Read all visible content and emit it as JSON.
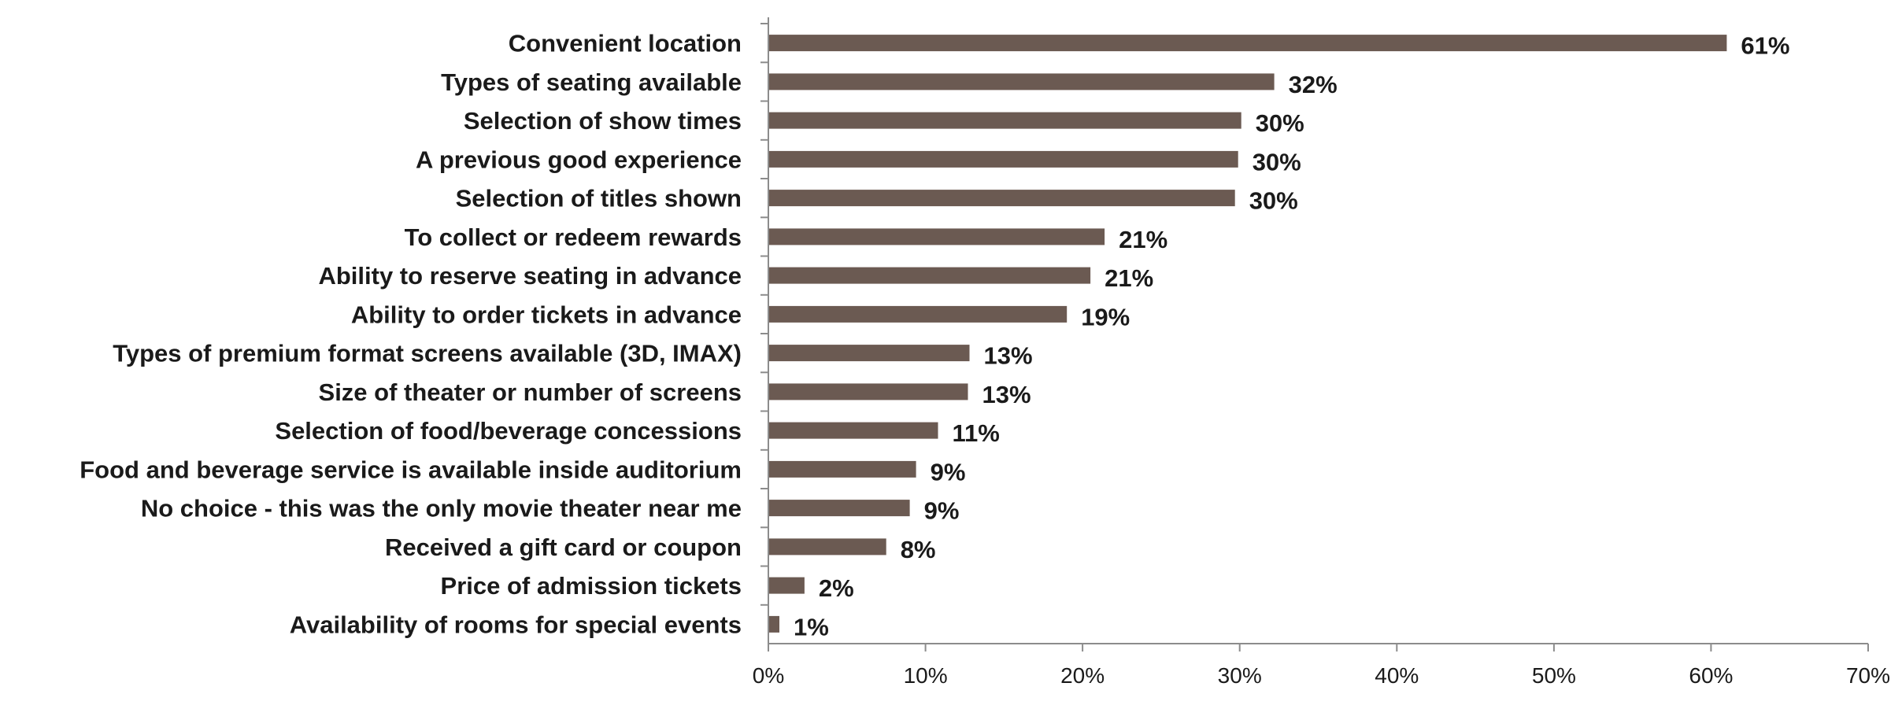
{
  "chart_data": {
    "type": "bar",
    "orientation": "horizontal",
    "title": "",
    "xlabel": "",
    "ylabel": "",
    "xlim": [
      0,
      70
    ],
    "x_ticks": [
      "0%",
      "10%",
      "20%",
      "30%",
      "40%",
      "50%",
      "60%",
      "70%"
    ],
    "grid": false,
    "bar_color": "#6b5a52",
    "categories": [
      "Convenient location",
      "Types of seating available",
      "Selection of show times",
      "A previous good experience",
      "Selection of titles shown",
      "To collect or redeem rewards",
      "Ability to reserve seating in advance",
      "Ability to order tickets in advance",
      "Types of premium format screens available (3D, IMAX)",
      "Size of theater or number of screens",
      "Selection of food/beverage concessions",
      "Food and beverage service is available inside auditorium",
      "No choice - this was the only movie theater near me",
      "Received a gift card or coupon",
      "Price of admission tickets",
      "Availability of rooms for special events"
    ],
    "values": [
      61,
      32.2,
      30.1,
      29.9,
      29.7,
      21.4,
      20.5,
      19.0,
      12.8,
      12.7,
      10.8,
      9.4,
      9.0,
      7.5,
      2.3,
      0.7
    ],
    "value_labels": [
      "61%",
      "32%",
      "30%",
      "30%",
      "30%",
      "21%",
      "21%",
      "19%",
      "13%",
      "13%",
      "11%",
      "9%",
      "9%",
      "8%",
      "2%",
      "1%"
    ]
  }
}
